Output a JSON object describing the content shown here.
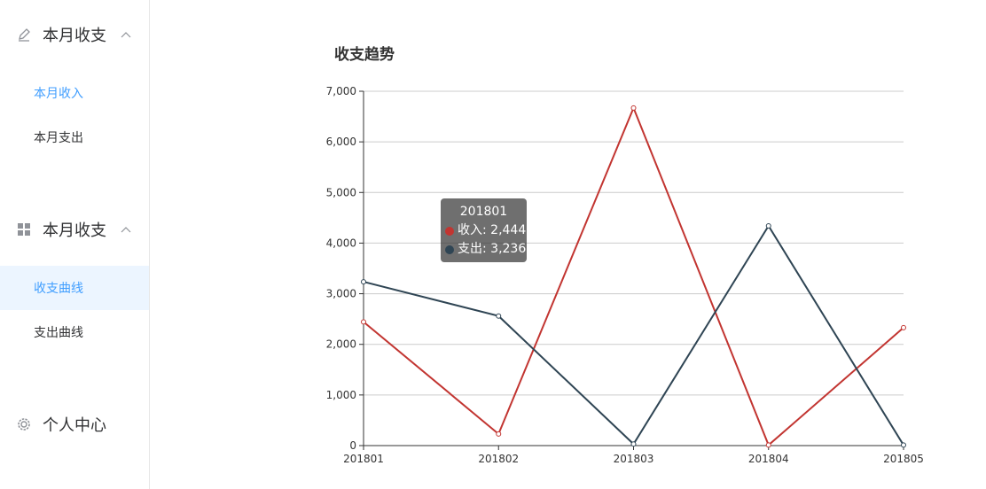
{
  "sidebar": {
    "groups": [
      {
        "title": "本月收支",
        "icon": "pencil-icon",
        "items": [
          "本月收入",
          "本月支出"
        ]
      },
      {
        "title": "本月收支",
        "icon": "grid-icon",
        "items": [
          "收支曲线",
          "支出曲线"
        ]
      },
      {
        "title": "个人中心",
        "icon": "gear-icon",
        "items": []
      }
    ],
    "active_text_item": "本月收入",
    "active_item": "收支曲线"
  },
  "chart_title": "收支趋势",
  "tooltip": {
    "title": "201801",
    "rows": [
      {
        "label": "收入: 2,444",
        "color": "#c23531"
      },
      {
        "label": "支出: 3,236",
        "color": "#2f4554"
      }
    ]
  },
  "colors": {
    "accent": "#409eff",
    "active_bg": "#ecf5ff",
    "income": "#c23531",
    "expense": "#2f4554"
  },
  "chart_data": {
    "type": "line",
    "title": "收支趋势",
    "categories": [
      "201801",
      "201802",
      "201803",
      "201804",
      "201805"
    ],
    "series": [
      {
        "name": "收入",
        "values": [
          2444,
          230,
          6670,
          10,
          2330
        ],
        "color": "#c23531"
      },
      {
        "name": "支出",
        "values": [
          3236,
          2560,
          30,
          4340,
          10
        ],
        "color": "#2f4554"
      }
    ],
    "ylim": [
      0,
      7000
    ],
    "yticks": [
      0,
      1000,
      2000,
      3000,
      4000,
      5000,
      6000,
      7000
    ],
    "ytick_labels": [
      "0",
      "1,000",
      "2,000",
      "3,000",
      "4,000",
      "5,000",
      "6,000",
      "7,000"
    ],
    "grid": true
  }
}
